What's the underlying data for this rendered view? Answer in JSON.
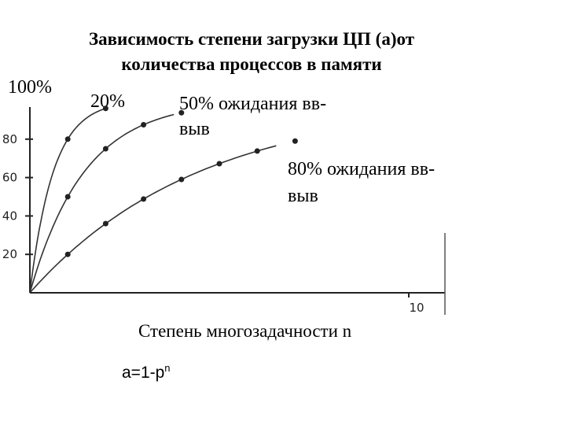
{
  "chart_data": {
    "type": "line",
    "title_line1": "Зависимость степени загрузки ЦП (а)от",
    "title_line2": "количества процессов в памяти",
    "y_top_label": "100%",
    "xlabel": "Степень многозадачности n",
    "formula_base": "a=1-p",
    "formula_exp": "n",
    "xlim": [
      0,
      10
    ],
    "ylim": [
      0,
      100
    ],
    "x_ticks": [
      {
        "value": 10,
        "label": "10"
      }
    ],
    "y_ticks": [
      {
        "value": 20,
        "label": "20"
      },
      {
        "value": 40,
        "label": "40"
      },
      {
        "value": 60,
        "label": "60"
      },
      {
        "value": 80,
        "label": "80"
      }
    ],
    "series": [
      {
        "name": "20%",
        "x": [
          0,
          1,
          2
        ],
        "y": [
          0,
          80,
          96
        ]
      },
      {
        "name": "50% ожидания вв-выв",
        "x": [
          0,
          1,
          2,
          3,
          4
        ],
        "y": [
          0,
          50,
          75,
          87.5,
          93.75
        ]
      },
      {
        "name": "80% ожидания вв-выв",
        "x": [
          0,
          1,
          2,
          3,
          4,
          5,
          6,
          7
        ],
        "y": [
          0,
          20,
          36,
          48.8,
          59,
          67.2,
          73.8,
          79
        ]
      }
    ]
  }
}
